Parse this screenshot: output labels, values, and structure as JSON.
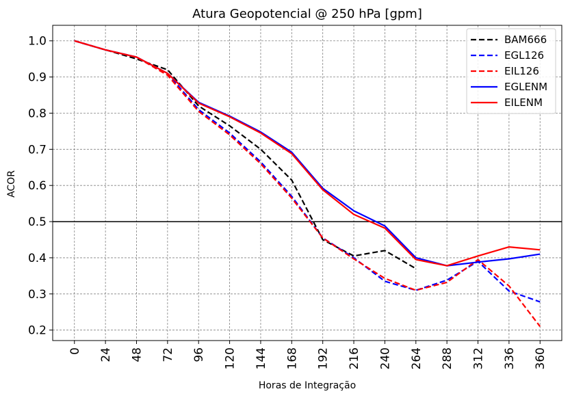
{
  "chart_data": {
    "type": "line",
    "title": "Atura Geopotencial @ 250 hPa [gpm]",
    "xlabel": "Horas de Integração",
    "ylabel": "ACOR",
    "x": [
      0,
      24,
      48,
      72,
      96,
      120,
      144,
      168,
      192,
      216,
      240,
      264,
      288,
      312,
      336,
      360
    ],
    "x_tick_labels": [
      "0",
      "24",
      "48",
      "72",
      "96",
      "120",
      "144",
      "168",
      "192",
      "216",
      "240",
      "264",
      "288",
      "312",
      "336",
      "360"
    ],
    "y_ticks": [
      0.2,
      0.3,
      0.4,
      0.5,
      0.6,
      0.7,
      0.8,
      0.9,
      1.0
    ],
    "y_tick_labels": [
      "0.2",
      "0.3",
      "0.4",
      "0.5",
      "0.6",
      "0.7",
      "0.8",
      "0.9",
      "1.0"
    ],
    "xlim": [
      -16.8,
      376.8
    ],
    "ylim": [
      0.171,
      1.043
    ],
    "grid": true,
    "reference_line": 0.5,
    "legend_position": "top-right",
    "series": [
      {
        "name": "BAM666",
        "color": "#000000",
        "dashed": true,
        "x": [
          0,
          24,
          48,
          72,
          96,
          120,
          144,
          168,
          192,
          216,
          240,
          264
        ],
        "values": [
          1.0,
          0.975,
          0.95,
          0.92,
          0.82,
          0.765,
          0.7,
          0.615,
          0.45,
          0.405,
          0.42,
          0.37
        ]
      },
      {
        "name": "EGL126",
        "color": "#0000ff",
        "dashed": true,
        "x": [
          0,
          24,
          48,
          72,
          96,
          120,
          144,
          168,
          192,
          216,
          240,
          264,
          288,
          312,
          336,
          360
        ],
        "values": [
          1.0,
          0.975,
          0.955,
          0.91,
          0.81,
          0.745,
          0.665,
          0.57,
          0.455,
          0.4,
          0.335,
          0.31,
          0.338,
          0.39,
          0.308,
          0.278
        ]
      },
      {
        "name": "EIL126",
        "color": "#ff0000",
        "dashed": true,
        "x": [
          0,
          24,
          48,
          72,
          96,
          120,
          144,
          168,
          192,
          216,
          240,
          264,
          288,
          312,
          336,
          360
        ],
        "values": [
          1.0,
          0.975,
          0.955,
          0.905,
          0.805,
          0.74,
          0.66,
          0.565,
          0.455,
          0.397,
          0.343,
          0.31,
          0.332,
          0.395,
          0.322,
          0.21
        ]
      },
      {
        "name": "EGLENM",
        "color": "#0000ff",
        "dashed": false,
        "x": [
          0,
          24,
          48,
          72,
          96,
          120,
          144,
          168,
          192,
          216,
          240,
          264,
          288,
          312,
          336,
          360
        ],
        "values": [
          1.0,
          0.975,
          0.955,
          0.91,
          0.83,
          0.792,
          0.748,
          0.692,
          0.592,
          0.53,
          0.488,
          0.4,
          0.378,
          0.388,
          0.397,
          0.41
        ]
      },
      {
        "name": "EILENM",
        "color": "#ff0000",
        "dashed": false,
        "x": [
          0,
          24,
          48,
          72,
          96,
          120,
          144,
          168,
          192,
          216,
          240,
          264,
          288,
          312,
          336,
          360
        ],
        "values": [
          1.0,
          0.975,
          0.955,
          0.91,
          0.828,
          0.79,
          0.745,
          0.688,
          0.588,
          0.52,
          0.482,
          0.395,
          0.378,
          0.405,
          0.43,
          0.422
        ]
      }
    ]
  }
}
